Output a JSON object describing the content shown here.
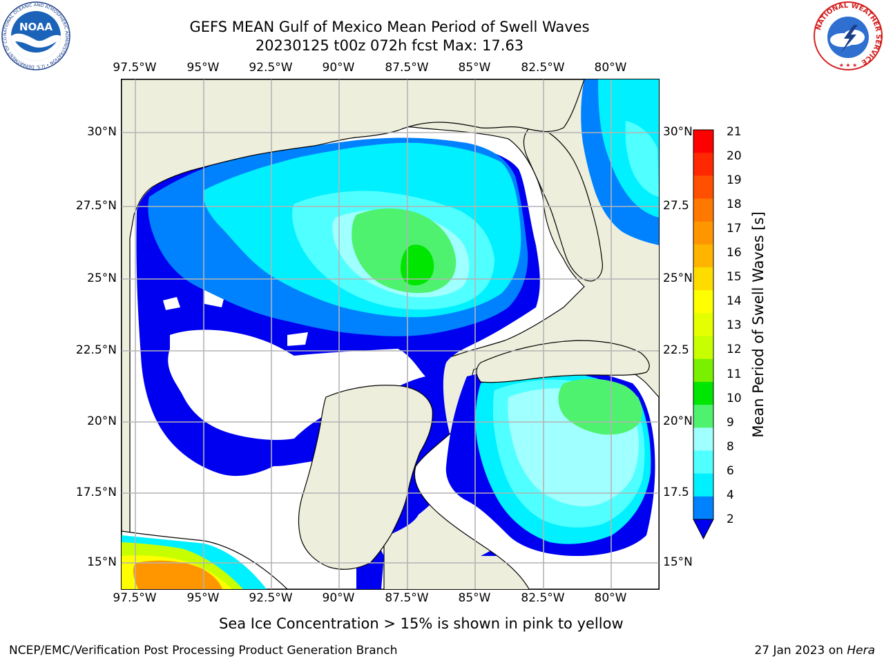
{
  "title": {
    "line1": "GEFS MEAN Gulf of Mexico Mean Period of Swell Waves",
    "line2": "20230125 t00z 072h fcst   Max: 17.63"
  },
  "map": {
    "lon_labels": [
      "97.5°W",
      "95°W",
      "92.5°W",
      "90°W",
      "87.5°W",
      "85°W",
      "82.5°W",
      "80°W"
    ],
    "lat_labels_left": [
      "30°N",
      "27.5°N",
      "25°N",
      "22.5°N",
      "20°N",
      "17.5°N",
      "15°N"
    ],
    "lat_labels_right": [
      "30°N",
      "27.5",
      "25°N",
      "22.5",
      "20°N",
      "17.5",
      "15°N"
    ],
    "land_color": "#eeeedc",
    "missing_color": "#ffffff"
  },
  "colorbar": {
    "title": "Mean Period of Swell Waves [s]",
    "labels": [
      "21",
      "20",
      "19",
      "18",
      "17",
      "16",
      "15",
      "14",
      "13",
      "12",
      "11",
      "10",
      "9",
      "8",
      "6",
      "4",
      "2"
    ],
    "colors_top_to_bottom": [
      "#ff0000",
      "#ff2800",
      "#ff5000",
      "#ff7800",
      "#ff9600",
      "#ffb400",
      "#ffdc00",
      "#ffff00",
      "#e6ff00",
      "#c8ff00",
      "#78f000",
      "#00e600",
      "#4ef26e",
      "#a0ffff",
      "#50ffff",
      "#00f0ff",
      "#0082ff"
    ],
    "under_color": "#0000f0"
  },
  "note": "Sea Ice Concentration > 15% is shown in pink to yellow",
  "footer": {
    "left": "NCEP/EMC/Verification Post Processing Product Generation Branch",
    "date": "27 Jan 2023 on",
    "machine": "Hera"
  },
  "logos": {
    "noaa_text": "NOAA",
    "noaa_ring": "NATIONAL OCEANIC AND ATMOSPHERIC ADMINISTRATION • U.S. DEPARTMENT OF COMMERCE",
    "nws_ring": "NATIONAL WEATHER SERVICE"
  }
}
